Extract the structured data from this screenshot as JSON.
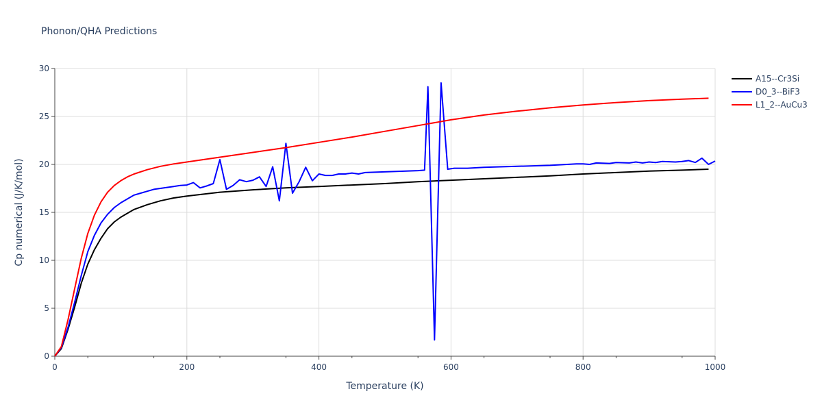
{
  "chart_data": {
    "type": "line",
    "title": "Phonon/QHA Predictions",
    "xlabel": "Temperature (K)",
    "ylabel": "Cp numerical (J/K/mol)",
    "xlim": [
      0,
      1000
    ],
    "ylim": [
      0,
      30
    ],
    "x_ticks": [
      0,
      200,
      400,
      600,
      800,
      1000
    ],
    "y_ticks": [
      0,
      5,
      10,
      15,
      20,
      25,
      30
    ],
    "grid": true,
    "legend_position": "top-right",
    "series": [
      {
        "name": "A15--Cr3Si",
        "color": "#000000",
        "points": [
          [
            0,
            0
          ],
          [
            10,
            0.8
          ],
          [
            20,
            2.8
          ],
          [
            30,
            5.1
          ],
          [
            40,
            7.6
          ],
          [
            50,
            9.6
          ],
          [
            60,
            11.1
          ],
          [
            70,
            12.3
          ],
          [
            80,
            13.3
          ],
          [
            90,
            14.0
          ],
          [
            100,
            14.5
          ],
          [
            110,
            14.9
          ],
          [
            120,
            15.3
          ],
          [
            140,
            15.8
          ],
          [
            160,
            16.2
          ],
          [
            180,
            16.5
          ],
          [
            200,
            16.7
          ],
          [
            250,
            17.1
          ],
          [
            300,
            17.35
          ],
          [
            350,
            17.55
          ],
          [
            400,
            17.7
          ],
          [
            450,
            17.85
          ],
          [
            500,
            18.0
          ],
          [
            550,
            18.2
          ],
          [
            600,
            18.35
          ],
          [
            650,
            18.5
          ],
          [
            700,
            18.65
          ],
          [
            750,
            18.8
          ],
          [
            800,
            19.0
          ],
          [
            850,
            19.15
          ],
          [
            900,
            19.3
          ],
          [
            950,
            19.4
          ],
          [
            990,
            19.5
          ]
        ]
      },
      {
        "name": "D0_3--BiF3",
        "color": "#0000ff",
        "points": [
          [
            0,
            0
          ],
          [
            10,
            0.9
          ],
          [
            20,
            3.0
          ],
          [
            30,
            5.6
          ],
          [
            40,
            8.4
          ],
          [
            50,
            10.9
          ],
          [
            60,
            12.6
          ],
          [
            70,
            13.9
          ],
          [
            80,
            14.8
          ],
          [
            90,
            15.5
          ],
          [
            100,
            16.0
          ],
          [
            110,
            16.4
          ],
          [
            120,
            16.8
          ],
          [
            130,
            17.0
          ],
          [
            140,
            17.2
          ],
          [
            150,
            17.4
          ],
          [
            160,
            17.5
          ],
          [
            170,
            17.6
          ],
          [
            180,
            17.7
          ],
          [
            190,
            17.8
          ],
          [
            200,
            17.85
          ],
          [
            210,
            18.1
          ],
          [
            220,
            17.55
          ],
          [
            230,
            17.75
          ],
          [
            240,
            18.0
          ],
          [
            250,
            20.5
          ],
          [
            260,
            17.4
          ],
          [
            270,
            17.8
          ],
          [
            280,
            18.4
          ],
          [
            290,
            18.2
          ],
          [
            300,
            18.35
          ],
          [
            310,
            18.7
          ],
          [
            320,
            17.7
          ],
          [
            330,
            19.75
          ],
          [
            340,
            16.2
          ],
          [
            350,
            22.2
          ],
          [
            360,
            17.0
          ],
          [
            370,
            18.2
          ],
          [
            380,
            19.7
          ],
          [
            390,
            18.3
          ],
          [
            400,
            19.0
          ],
          [
            410,
            18.85
          ],
          [
            420,
            18.85
          ],
          [
            430,
            19.0
          ],
          [
            440,
            19.0
          ],
          [
            450,
            19.1
          ],
          [
            460,
            19.0
          ],
          [
            470,
            19.15
          ],
          [
            550,
            19.35
          ],
          [
            560,
            19.4
          ],
          [
            565,
            28.1
          ],
          [
            575,
            1.7
          ],
          [
            585,
            28.5
          ],
          [
            595,
            19.5
          ],
          [
            605,
            19.6
          ],
          [
            625,
            19.6
          ],
          [
            650,
            19.7
          ],
          [
            700,
            19.8
          ],
          [
            750,
            19.9
          ],
          [
            790,
            20.05
          ],
          [
            800,
            20.05
          ],
          [
            810,
            20.0
          ],
          [
            820,
            20.15
          ],
          [
            840,
            20.1
          ],
          [
            850,
            20.2
          ],
          [
            870,
            20.15
          ],
          [
            880,
            20.25
          ],
          [
            890,
            20.15
          ],
          [
            900,
            20.25
          ],
          [
            910,
            20.2
          ],
          [
            920,
            20.3
          ],
          [
            940,
            20.25
          ],
          [
            950,
            20.3
          ],
          [
            960,
            20.4
          ],
          [
            970,
            20.2
          ],
          [
            980,
            20.65
          ],
          [
            990,
            20.0
          ],
          [
            1000,
            20.35
          ]
        ]
      },
      {
        "name": "L1_2--AuCu3",
        "color": "#ff0000",
        "points": [
          [
            0,
            0
          ],
          [
            10,
            1.0
          ],
          [
            20,
            3.8
          ],
          [
            30,
            7.0
          ],
          [
            40,
            10.2
          ],
          [
            50,
            12.8
          ],
          [
            60,
            14.7
          ],
          [
            70,
            16.1
          ],
          [
            80,
            17.1
          ],
          [
            90,
            17.8
          ],
          [
            100,
            18.3
          ],
          [
            110,
            18.7
          ],
          [
            120,
            19.0
          ],
          [
            140,
            19.45
          ],
          [
            160,
            19.8
          ],
          [
            180,
            20.05
          ],
          [
            200,
            20.25
          ],
          [
            250,
            20.75
          ],
          [
            300,
            21.25
          ],
          [
            350,
            21.75
          ],
          [
            400,
            22.3
          ],
          [
            450,
            22.85
          ],
          [
            500,
            23.45
          ],
          [
            550,
            24.05
          ],
          [
            600,
            24.65
          ],
          [
            650,
            25.15
          ],
          [
            700,
            25.55
          ],
          [
            750,
            25.9
          ],
          [
            800,
            26.2
          ],
          [
            850,
            26.45
          ],
          [
            900,
            26.65
          ],
          [
            950,
            26.8
          ],
          [
            990,
            26.9
          ]
        ]
      }
    ]
  }
}
